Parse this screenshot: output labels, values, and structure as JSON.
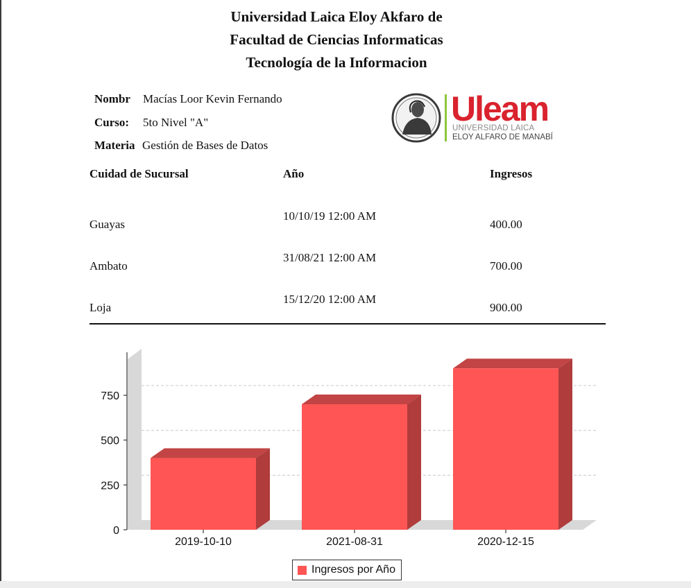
{
  "header": {
    "line1": "Universidad Laica Eloy Akfaro de",
    "line2": "Facultad de Ciencias Informaticas",
    "line3": "Tecnología de la Informacion"
  },
  "info": {
    "name_label": "Nombr",
    "name_value": "Macías Loor Kevin Fernando",
    "course_label": "Curso:",
    "course_value": "5to Nivel \"A\"",
    "subject_label": "Materia",
    "subject_value": "Gestión de Bases de Datos"
  },
  "logo": {
    "word": "Uleam",
    "line1": "UNIVERSIDAD LAICA",
    "line2": "ELOY ALFARO DE MANABÍ"
  },
  "table": {
    "headers": [
      "Cuidad de Sucursal",
      "Año",
      "Ingresos"
    ],
    "rows": [
      {
        "city": "Guayas",
        "date": "10/10/19 12:00 AM",
        "amount": "400.00"
      },
      {
        "city": "Ambato",
        "date": "31/08/21 12:00 AM",
        "amount": "700.00"
      },
      {
        "city": "Loja",
        "date": "15/12/20 12:00 AM",
        "amount": "900.00"
      }
    ]
  },
  "colors": {
    "bar_front": "#ff5555",
    "bar_side": "#b03c3c",
    "bar_top": "#c24444",
    "logo_red": "#d9232e",
    "logo_green": "#8dc63f"
  },
  "chart_data": {
    "type": "bar",
    "style": "3d",
    "categories": [
      "2019-10-10",
      "2021-08-31",
      "2020-12-15"
    ],
    "series": [
      {
        "name": "Ingresos por Año",
        "values": [
          400,
          700,
          900
        ]
      }
    ],
    "ylim": [
      0,
      950
    ],
    "yticks": [
      0,
      250,
      500,
      750
    ],
    "grid": true,
    "legend": "bottom"
  }
}
